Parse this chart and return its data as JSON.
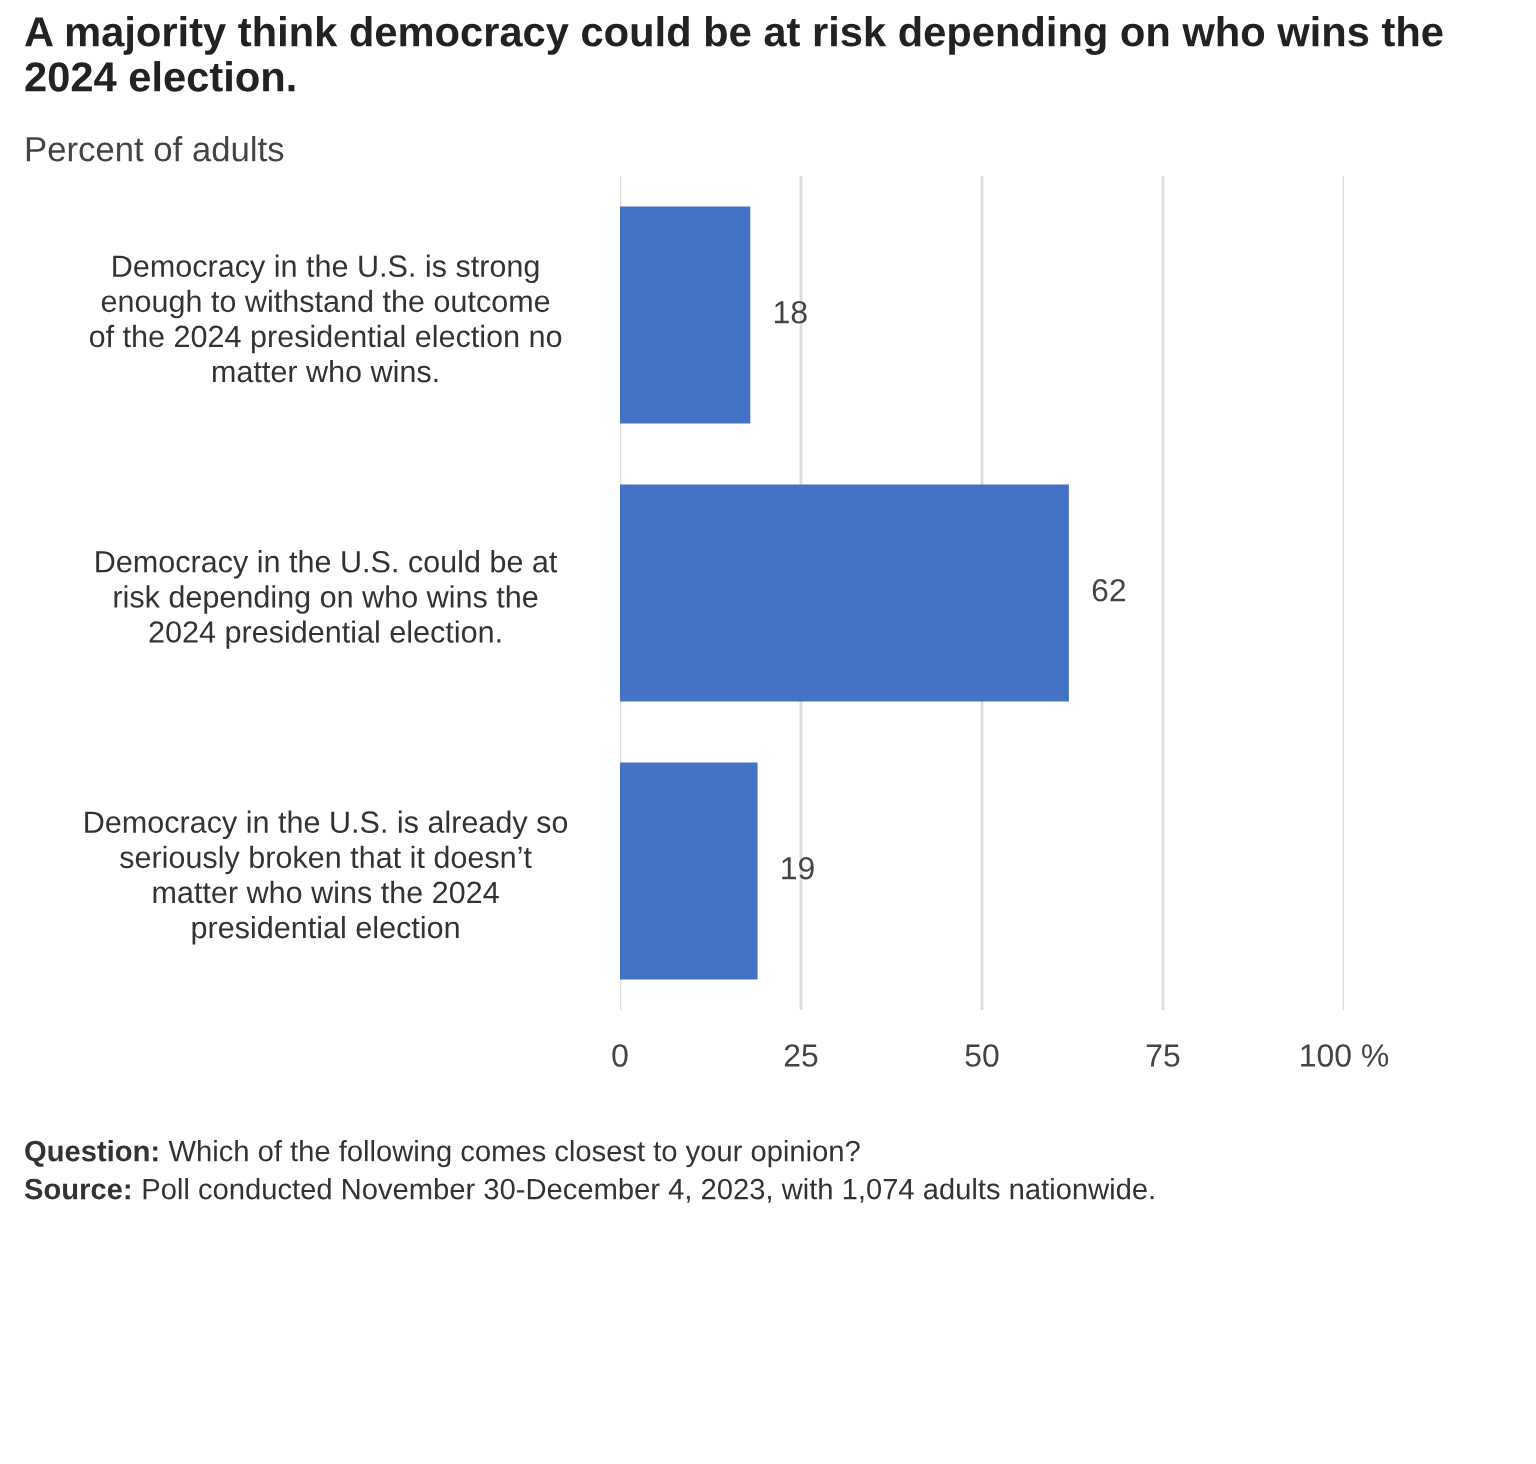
{
  "chart_data": {
    "type": "bar",
    "orientation": "horizontal",
    "title": "A majority think democracy could be at risk depending on who wins the 2024 election.",
    "subtitle": "Percent of adults",
    "categories": [
      "Democracy in the U.S. is strong\nenough to withstand the outcome\nof the 2024 presidential election no\nmatter who wins.",
      "Democracy in the U.S. could be at\nrisk depending on who wins the\n2024 presidential election.",
      "Democracy in the U.S. is already so\nseriously broken that it doesn’t\nmatter who wins the 2024\npresidential election"
    ],
    "values": [
      18,
      62,
      19
    ],
    "color": "#4472c4",
    "xlim": [
      0,
      100
    ],
    "xticks": [
      0,
      25,
      50,
      75,
      {
        "value": 100,
        "label": "100 %"
      }
    ],
    "grid": "x",
    "data_labels": true,
    "legend": false,
    "annotations": [
      "Question: Which of the following comes closest to your opinion?",
      "Source: Poll conducted November 30-December 4, 2023, with 1,074 adults nationwide."
    ]
  }
}
